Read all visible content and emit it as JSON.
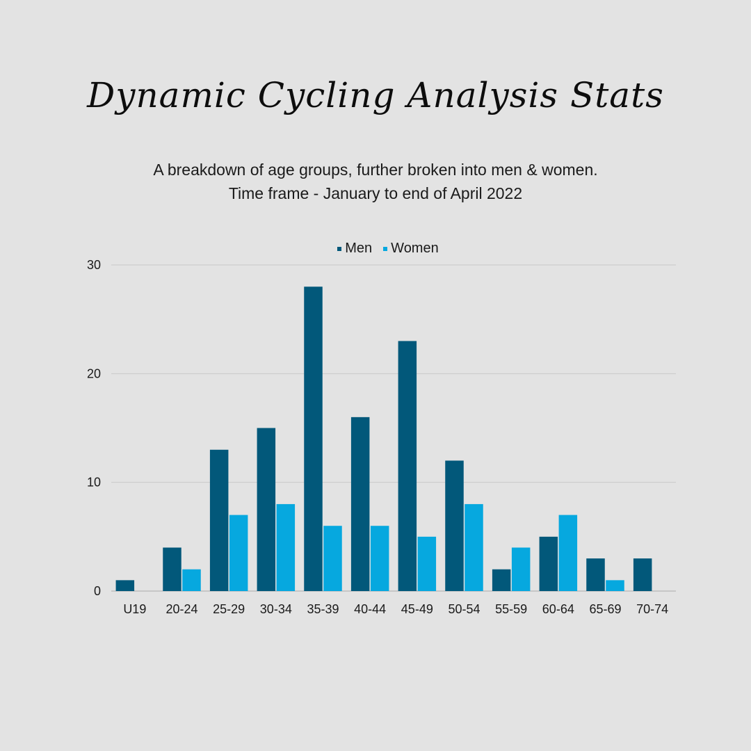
{
  "title": "Dynamic Cycling Analysis Stats",
  "subtitle_line1": "A breakdown of age groups, further broken into men & women.",
  "subtitle_line2": "Time frame - January to end of April 2022",
  "colors": {
    "background": "#e3e3e3",
    "men": "#02587a",
    "women": "#06a8df",
    "grid": "#c9c9c9"
  },
  "chart_data": {
    "type": "bar",
    "categories": [
      "U19",
      "20-24",
      "25-29",
      "30-34",
      "35-39",
      "40-44",
      "45-49",
      "50-54",
      "55-59",
      "60-64",
      "65-69",
      "70-74"
    ],
    "series": [
      {
        "name": "Men",
        "color": "#02587a",
        "values": [
          1,
          4,
          13,
          15,
          28,
          16,
          23,
          12,
          2,
          5,
          3,
          3
        ]
      },
      {
        "name": "Women",
        "color": "#06a8df",
        "values": [
          0,
          2,
          7,
          8,
          6,
          6,
          5,
          8,
          4,
          7,
          1,
          0
        ]
      }
    ],
    "yticks": [
      0,
      10,
      20,
      30
    ],
    "ylim": [
      0,
      30
    ],
    "grid": true,
    "legend_position": "top-center"
  }
}
